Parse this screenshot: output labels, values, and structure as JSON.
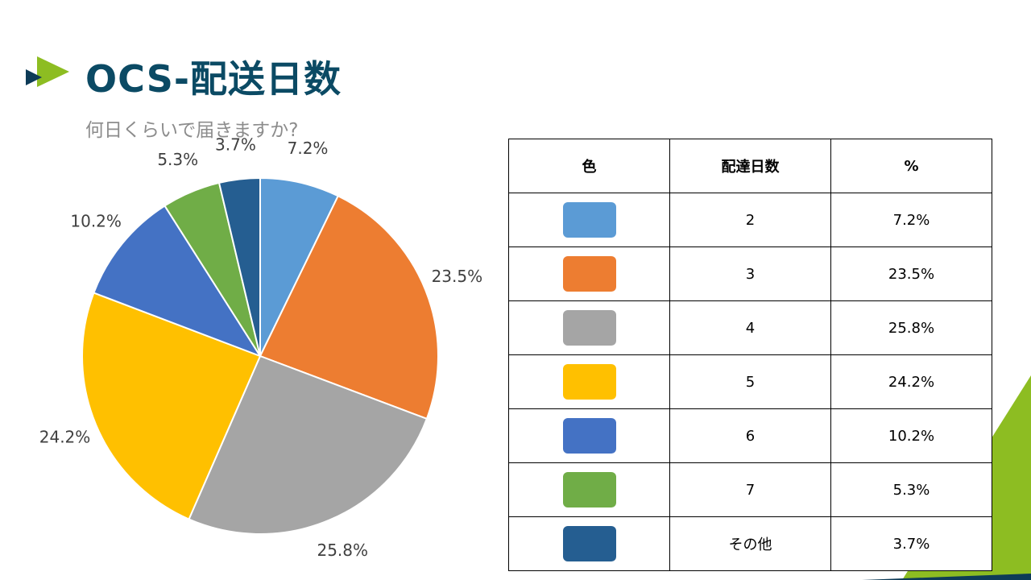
{
  "header": {
    "title": "OCS-配送日数",
    "subtitle": "何日くらいで届きますか?"
  },
  "colors": {
    "title": "#0b4a64",
    "accent_green": "#8dbd22",
    "accent_navy": "#0d3b57"
  },
  "chart_data": {
    "type": "pie",
    "title": "",
    "start_angle_deg": 0,
    "direction": "clockwise",
    "slices": [
      {
        "category": "2",
        "value": 7.2,
        "label": "7.2%",
        "color": "#5b9bd5"
      },
      {
        "category": "3",
        "value": 23.5,
        "label": "23.5%",
        "color": "#ed7d31"
      },
      {
        "category": "4",
        "value": 25.8,
        "label": "25.8%",
        "color": "#a5a5a5"
      },
      {
        "category": "5",
        "value": 24.2,
        "label": "24.2%",
        "color": "#ffc000"
      },
      {
        "category": "6",
        "value": 10.2,
        "label": "10.2%",
        "color": "#4472c4"
      },
      {
        "category": "7",
        "value": 5.3,
        "label": "5.3%",
        "color": "#70ad47"
      },
      {
        "category": "その他",
        "value": 3.7,
        "label": "3.7%",
        "color": "#255e91"
      }
    ]
  },
  "table": {
    "headers": {
      "color": "色",
      "days": "配達日数",
      "percent": "%"
    },
    "rows": [
      {
        "days": "2",
        "percent": "7.2%",
        "color": "#5b9bd5"
      },
      {
        "days": "3",
        "percent": "23.5%",
        "color": "#ed7d31"
      },
      {
        "days": "4",
        "percent": "25.8%",
        "color": "#a5a5a5"
      },
      {
        "days": "5",
        "percent": "24.2%",
        "color": "#ffc000"
      },
      {
        "days": "6",
        "percent": "10.2%",
        "color": "#4472c4"
      },
      {
        "days": "7",
        "percent": "5.3%",
        "color": "#70ad47"
      },
      {
        "days": "その他",
        "percent": "3.7%",
        "color": "#255e91"
      }
    ]
  }
}
